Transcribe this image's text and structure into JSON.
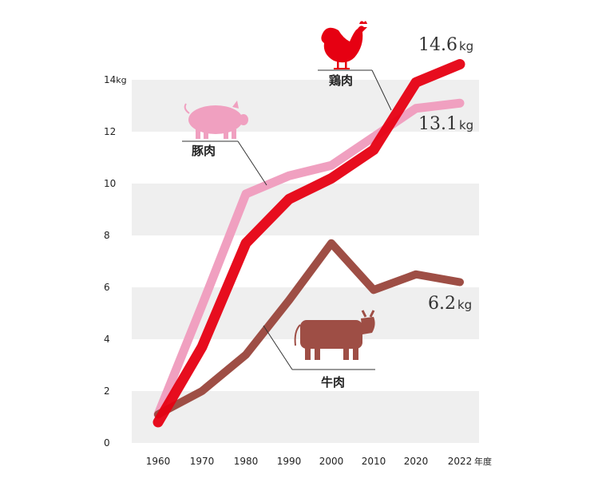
{
  "chart_data": {
    "type": "line",
    "title": "",
    "xlabel": "",
    "ylabel": "",
    "x": [
      1960,
      1970,
      1980,
      1990,
      2000,
      2010,
      2020,
      2022
    ],
    "x_ticks": [
      "1960",
      "1970",
      "1980",
      "1990",
      "2000",
      "2010",
      "2020",
      "2022"
    ],
    "x_unit": "年度",
    "ylim": [
      0,
      14
    ],
    "y_ticks": [
      "0",
      "2",
      "4",
      "6",
      "8",
      "10",
      "12",
      "14"
    ],
    "y_unit": "kg",
    "grid": "alternating horizontal bands",
    "series": [
      {
        "name": "豚肉",
        "color": "#f0a0c0",
        "icon": "pig-icon",
        "values": [
          1.1,
          5.3,
          9.6,
          10.3,
          10.7,
          11.8,
          12.9,
          13.1
        ],
        "end_value": "13.1",
        "end_unit": "kg"
      },
      {
        "name": "鶏肉",
        "color": "#e60012",
        "icon": "chicken-icon",
        "values": [
          0.8,
          3.7,
          7.7,
          9.4,
          10.2,
          11.3,
          13.9,
          14.6
        ],
        "end_value": "14.6",
        "end_unit": "kg"
      },
      {
        "name": "牛肉",
        "color": "#9e4e45",
        "icon": "cow-icon",
        "values": [
          1.1,
          2.0,
          3.4,
          5.5,
          7.7,
          5.9,
          6.5,
          6.2
        ],
        "end_value": "6.2",
        "end_unit": "kg"
      }
    ]
  }
}
